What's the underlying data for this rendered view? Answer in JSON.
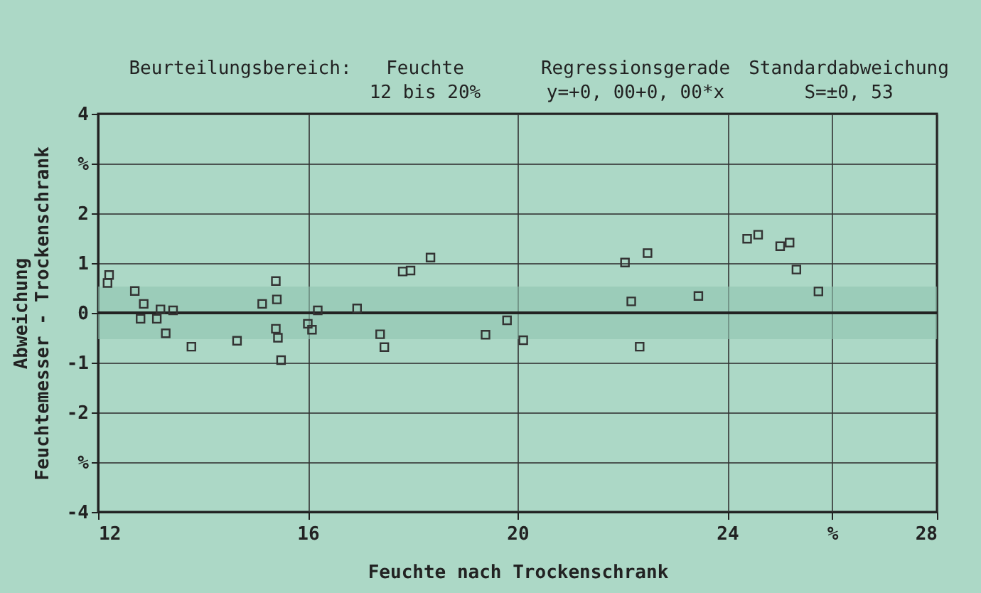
{
  "chart_data": {
    "type": "scatter",
    "xlabel": "Feuchte nach Trockenschrank",
    "ylabel": "Abweichung\nFeuchtemesser - Trockenschrank",
    "annotations": [
      "Beurteilungsbereich:",
      "Feuchte\n12 bis 20%",
      "Regressionsgerade\ny=+0, 00+0, 00*x",
      "Standardabweichung\nS=±0, 53"
    ],
    "x": [
      12.21,
      12.18,
      12.7,
      12.87,
      13.19,
      13.43,
      12.81,
      13.12,
      13.29,
      13.78,
      14.65,
      15.13,
      15.39,
      15.41,
      15.39,
      15.43,
      15.49,
      16.0,
      16.08,
      16.19,
      18.34,
      17.81,
      17.96,
      16.94,
      17.38,
      17.46,
      19.39,
      19.8,
      20.11,
      22.05,
      22.48,
      22.17,
      22.33,
      23.45,
      24.38,
      24.59,
      25.01,
      25.19,
      25.32,
      25.74
    ],
    "values": [
      0.76,
      0.6,
      0.44,
      0.18,
      0.07,
      0.05,
      -0.12,
      -0.12,
      -0.41,
      -0.68,
      -0.56,
      0.18,
      0.64,
      0.27,
      -0.32,
      -0.5,
      -0.95,
      -0.22,
      -0.34,
      0.05,
      1.11,
      0.83,
      0.85,
      0.09,
      -0.43,
      -0.69,
      -0.44,
      -0.15,
      -0.55,
      1.01,
      1.2,
      0.23,
      -0.68,
      0.34,
      1.49,
      1.57,
      1.34,
      1.41,
      0.87,
      0.43
    ],
    "color": "#333333",
    "marker": "square",
    "xlim": [
      12,
      28
    ],
    "xticks": [
      12,
      16,
      20,
      24,
      {
        "value": 26,
        "label": "%"
      },
      28
    ],
    "ylim": [
      -4,
      4
    ],
    "yticks": [
      -4,
      {
        "value": -3,
        "label": "%"
      },
      -2,
      -1,
      0,
      1,
      2,
      {
        "value": 3,
        "label": "%"
      },
      4
    ],
    "grid": true,
    "ref_lines": [
      {
        "axis": "y",
        "value": 0,
        "color": "#222222"
      }
    ],
    "bands": [
      {
        "axis": "y",
        "from": -0.53,
        "to": 0.53,
        "color": "#8fc4b0"
      }
    ]
  }
}
